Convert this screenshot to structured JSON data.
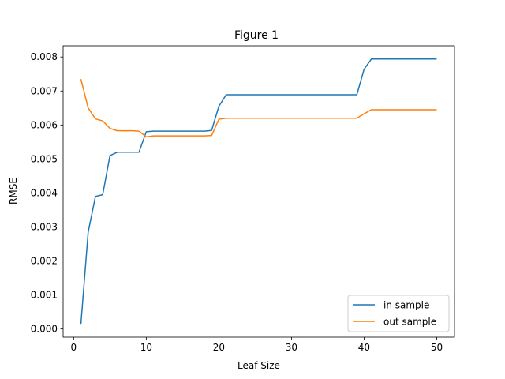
{
  "chart_data": {
    "type": "line",
    "title": "Figure 1",
    "xlabel": "Leaf Size",
    "ylabel": "RMSE",
    "xlim": [
      -1.45,
      52.45
    ],
    "ylim": [
      -0.00024,
      0.00833
    ],
    "xticks": [
      0,
      10,
      20,
      30,
      40,
      50
    ],
    "xtick_labels": [
      "0",
      "10",
      "20",
      "30",
      "40",
      "50"
    ],
    "yticks": [
      0.0,
      0.001,
      0.002,
      0.003,
      0.004,
      0.005,
      0.006,
      0.007,
      0.008
    ],
    "ytick_labels": [
      "0.000",
      "0.001",
      "0.002",
      "0.003",
      "0.004",
      "0.005",
      "0.006",
      "0.007",
      "0.008"
    ],
    "grid": false,
    "legend_position": "bottom-right",
    "series": [
      {
        "name": "in sample",
        "color": "#1f77b4",
        "x": [
          1,
          2,
          3,
          4,
          5,
          6,
          7,
          8,
          9,
          10,
          11,
          12,
          13,
          14,
          15,
          16,
          17,
          18,
          19,
          20,
          21,
          22,
          23,
          24,
          25,
          26,
          27,
          28,
          29,
          30,
          31,
          32,
          33,
          34,
          35,
          36,
          37,
          38,
          39,
          40,
          41,
          42,
          43,
          44,
          45,
          46,
          47,
          48,
          49,
          50
        ],
        "values": [
          0.00015,
          0.00285,
          0.0039,
          0.00395,
          0.0051,
          0.0052,
          0.0052,
          0.0052,
          0.0052,
          0.0058,
          0.00582,
          0.00582,
          0.00582,
          0.00582,
          0.00582,
          0.00582,
          0.00582,
          0.00582,
          0.00584,
          0.00655,
          0.00689,
          0.00689,
          0.00689,
          0.00689,
          0.00689,
          0.00689,
          0.00689,
          0.00689,
          0.00689,
          0.00689,
          0.00689,
          0.00689,
          0.00689,
          0.00689,
          0.00689,
          0.00689,
          0.00689,
          0.00689,
          0.00689,
          0.00764,
          0.00794,
          0.00794,
          0.00794,
          0.00794,
          0.00794,
          0.00794,
          0.00794,
          0.00794,
          0.00794,
          0.00794
        ]
      },
      {
        "name": "out sample",
        "color": "#ff7f0e",
        "x": [
          1,
          2,
          3,
          4,
          5,
          6,
          7,
          8,
          9,
          10,
          11,
          12,
          13,
          14,
          15,
          16,
          17,
          18,
          19,
          20,
          21,
          22,
          23,
          24,
          25,
          26,
          27,
          28,
          29,
          30,
          31,
          32,
          33,
          34,
          35,
          36,
          37,
          38,
          39,
          40,
          41,
          42,
          43,
          44,
          45,
          46,
          47,
          48,
          49,
          50
        ],
        "values": [
          0.00735,
          0.0065,
          0.00618,
          0.00612,
          0.0059,
          0.00583,
          0.00583,
          0.00583,
          0.00582,
          0.00565,
          0.00568,
          0.00568,
          0.00568,
          0.00568,
          0.00568,
          0.00568,
          0.00568,
          0.00568,
          0.00569,
          0.00617,
          0.0062,
          0.0062,
          0.0062,
          0.0062,
          0.0062,
          0.0062,
          0.0062,
          0.0062,
          0.0062,
          0.0062,
          0.0062,
          0.0062,
          0.0062,
          0.0062,
          0.0062,
          0.0062,
          0.0062,
          0.0062,
          0.0062,
          0.00633,
          0.00645,
          0.00645,
          0.00645,
          0.00645,
          0.00645,
          0.00645,
          0.00645,
          0.00645,
          0.00645,
          0.00645
        ]
      }
    ]
  }
}
